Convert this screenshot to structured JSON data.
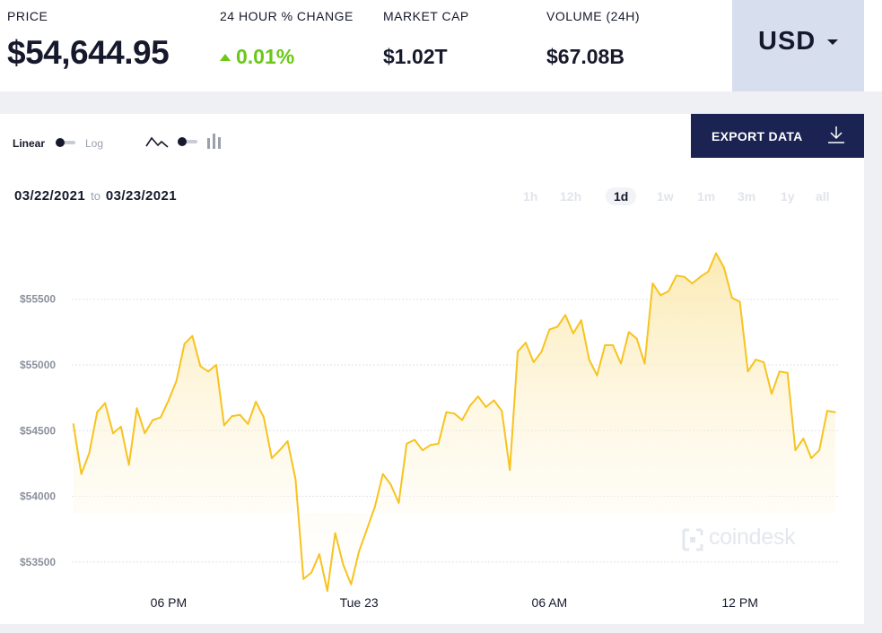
{
  "stats": {
    "price_label": "PRICE",
    "price_value": "$54,644.95",
    "change_label": "24 HOUR % CHANGE",
    "change_value": "0.01%",
    "change_direction": "up",
    "change_color": "#6ac817",
    "market_cap_label": "MARKET CAP",
    "market_cap_value": "$1.02T",
    "volume_label": "VOLUME (24H)",
    "volume_value": "$67.08B"
  },
  "currency": {
    "selected": "USD",
    "icon": "chevron-down-icon"
  },
  "controls": {
    "scale_linear": "Linear",
    "scale_log": "Log",
    "scale_selected": "Linear",
    "chart_type_icons": [
      "line-chart-icon",
      "bar-chart-icon"
    ],
    "chart_type_selected": "line",
    "export_label": "EXPORT DATA",
    "export_icon": "download-icon"
  },
  "date_range": {
    "from": "03/22/2021",
    "to_word": "to",
    "to": "03/23/2021"
  },
  "range_tabs": [
    {
      "label": "1h",
      "active": false
    },
    {
      "label": "12h",
      "active": false
    },
    {
      "label": "1d",
      "active": true
    },
    {
      "label": "1w",
      "active": false
    },
    {
      "label": "1m",
      "active": false
    },
    {
      "label": "3m",
      "active": false
    },
    {
      "label": "1y",
      "active": false
    },
    {
      "label": "all",
      "active": false
    }
  ],
  "watermark": "coindesk",
  "colors": {
    "line": "#f7c31f",
    "fill": "#fdf5de",
    "navy": "#1b2353"
  },
  "chart_data": {
    "type": "area",
    "title": "",
    "xlabel": "",
    "ylabel": "",
    "x_ticks": [
      "06 PM",
      "Tue 23",
      "06 AM",
      "12 PM"
    ],
    "y_ticks": [
      "$53500",
      "$54000",
      "$54500",
      "$55000",
      "$55500"
    ],
    "y_tick_values": [
      53500,
      54000,
      54500,
      55000,
      55500
    ],
    "ylim": [
      53260,
      55880
    ],
    "x_range_hours": [
      14.95,
      39.12
    ],
    "x_tick_hours": [
      18,
      24,
      30,
      36
    ],
    "grid": "horizontal-dashed",
    "series": [
      {
        "x_hours": [
          15.0,
          15.25,
          15.5,
          15.75,
          16.0,
          16.25,
          16.5,
          16.75,
          17.0,
          17.25,
          17.5,
          17.75,
          18.0,
          18.25,
          18.5,
          18.75,
          19.0,
          19.25,
          19.5,
          19.75,
          20.0,
          20.25,
          20.5,
          20.75,
          21.0,
          21.25,
          21.5,
          21.75,
          22.0,
          22.25,
          22.5,
          22.75,
          23.0,
          23.25,
          23.5,
          23.75,
          24.0,
          24.25,
          24.5,
          24.75,
          25.0,
          25.25,
          25.5,
          25.75,
          26.0,
          26.25,
          26.5,
          26.75,
          27.0,
          27.25,
          27.5,
          27.75,
          28.0,
          28.25,
          28.5,
          28.75,
          29.0,
          29.25,
          29.5,
          29.75,
          30.0,
          30.25,
          30.5,
          30.75,
          31.0,
          31.25,
          31.5,
          31.75,
          32.0,
          32.25,
          32.5,
          32.75,
          33.0,
          33.25,
          33.5,
          33.75,
          34.0,
          34.25,
          34.5,
          34.75,
          35.0,
          35.25,
          35.5,
          35.75,
          36.0,
          36.25,
          36.5,
          36.75,
          37.0,
          37.25,
          37.5,
          37.75,
          38.0,
          38.25,
          38.5,
          38.75,
          39.0
        ],
        "values": [
          54550,
          54170,
          54330,
          54640,
          54710,
          54480,
          54530,
          54240,
          54670,
          54480,
          54580,
          54600,
          54730,
          54880,
          55160,
          55220,
          54990,
          54950,
          55000,
          54540,
          54610,
          54620,
          54550,
          54720,
          54600,
          54290,
          54350,
          54420,
          54130,
          53370,
          53420,
          53560,
          53280,
          53720,
          53480,
          53330,
          53580,
          53750,
          53920,
          54170,
          54090,
          53950,
          54400,
          54430,
          54350,
          54390,
          54400,
          54640,
          54630,
          54580,
          54690,
          54760,
          54680,
          54730,
          54650,
          54200,
          55100,
          55170,
          55020,
          55100,
          55270,
          55290,
          55380,
          55240,
          55340,
          55040,
          54920,
          55150,
          55150,
          55010,
          55250,
          55200,
          55010,
          55620,
          55530,
          55560,
          55680,
          55670,
          55620,
          55670,
          55710,
          55850,
          55740,
          55510,
          55480,
          54950,
          55040,
          55020,
          54780,
          54950,
          54940,
          54350,
          54440,
          54290,
          54350,
          54650,
          54640
        ]
      }
    ]
  }
}
